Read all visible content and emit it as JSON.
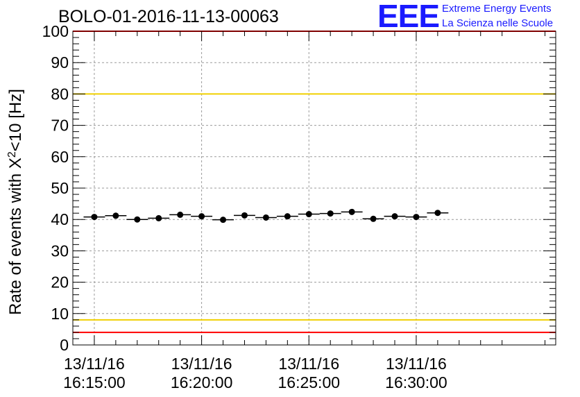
{
  "run_title": "BOLO-01-2016-11-13-00063",
  "logo": {
    "letters": "EEE",
    "line1": "Extreme Energy Events",
    "line2": "La Scienza nelle Scuole"
  },
  "chart_data": {
    "type": "scatter",
    "title": "BOLO-01-2016-11-13-00063",
    "ylabel": "Rate of events with X²<10 [Hz]",
    "xlabel": "",
    "ylim": [
      0,
      100
    ],
    "xlim_seconds_from_first_tick": [
      -60,
      1290
    ],
    "grid": true,
    "yticks": [
      0,
      10,
      20,
      30,
      40,
      50,
      60,
      70,
      80,
      90,
      100
    ],
    "xticks": [
      {
        "date": "13/11/16",
        "time": "16:15:00"
      },
      {
        "date": "13/11/16",
        "time": "16:20:00"
      },
      {
        "date": "13/11/16",
        "time": "16:25:00"
      },
      {
        "date": "13/11/16",
        "time": "16:30:00"
      }
    ],
    "x_times": [
      "16:15:00",
      "16:16:00",
      "16:17:00",
      "16:18:00",
      "16:19:00",
      "16:20:00",
      "16:21:00",
      "16:22:00",
      "16:23:00",
      "16:24:00",
      "16:25:00",
      "16:26:00",
      "16:27:00",
      "16:28:00",
      "16:29:00",
      "16:30:00",
      "16:31:00"
    ],
    "values": [
      40.8,
      41.2,
      40.0,
      40.4,
      41.5,
      41.0,
      39.9,
      41.3,
      40.6,
      41.0,
      41.7,
      41.9,
      42.4,
      40.2,
      41.0,
      40.8,
      42.1
    ],
    "x_error_seconds": 30,
    "reference_lines": [
      {
        "value": 80,
        "color": "#f0d000"
      },
      {
        "value": 8,
        "color": "#f0d000"
      },
      {
        "value": 4,
        "color": "#ff0000"
      },
      {
        "value": 100,
        "color": "#ff0000"
      }
    ],
    "marker_color": "#000000"
  }
}
